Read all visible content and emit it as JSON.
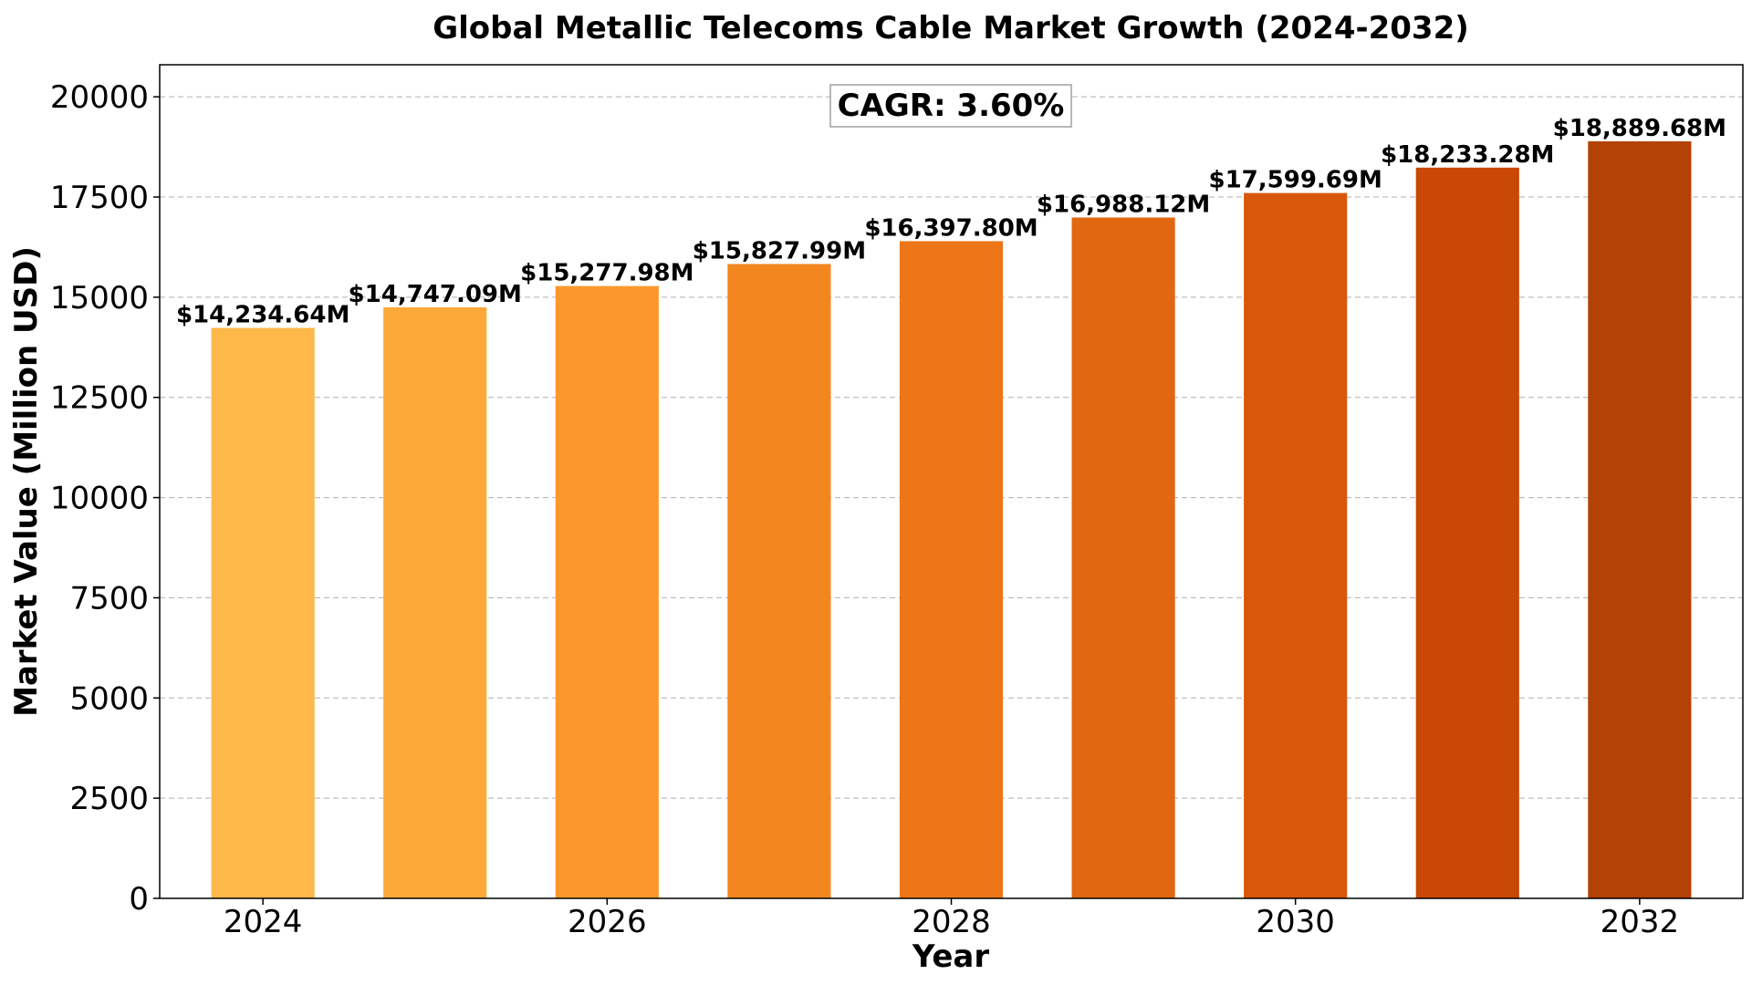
{
  "chart_data": {
    "type": "bar",
    "title": "Global Metallic Telecoms Cable Market Growth (2024-2032)",
    "xlabel": "Year",
    "ylabel": "Market Value (Million USD)",
    "ylim": [
      0,
      20800
    ],
    "yticks": [
      0,
      2500,
      5000,
      7500,
      10000,
      12500,
      15000,
      17500,
      20000
    ],
    "xticks": [
      2024,
      2026,
      2028,
      2030,
      2032
    ],
    "grid": "y",
    "annotation": "CAGR: 3.60%",
    "categories": [
      2024,
      2025,
      2026,
      2027,
      2028,
      2029,
      2030,
      2031,
      2032
    ],
    "values": [
      14234.64,
      14747.09,
      15277.98,
      15827.99,
      16397.8,
      16988.12,
      17599.69,
      18233.28,
      18889.68
    ],
    "value_labels": [
      "$14,234.64M",
      "$14,747.09M",
      "$15,277.98M",
      "$15,827.99M",
      "$16,397.80M",
      "$16,988.12M",
      "$17,599.69M",
      "$18,233.28M",
      "$18,889.68M"
    ],
    "colors": [
      "#fdb849",
      "#fca93a",
      "#fa982c",
      "#f3861f",
      "#ed7618",
      "#e26711",
      "#d9570a",
      "#c94803",
      "#b44204"
    ]
  }
}
